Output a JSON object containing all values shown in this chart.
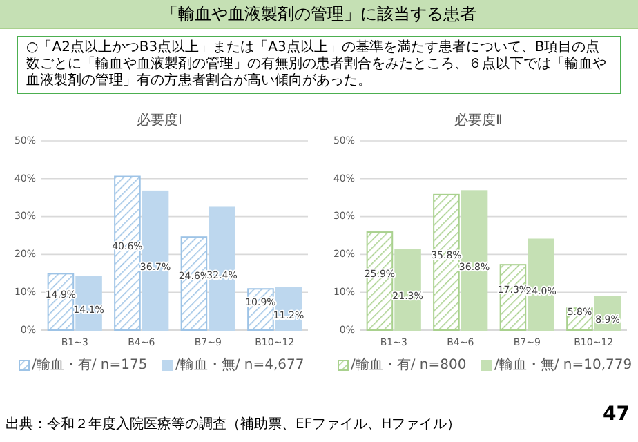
{
  "chart_data": [
    {
      "type": "bar",
      "title": "必要度Ⅰ",
      "categories": [
        "B1~3",
        "B4~6",
        "B7~9",
        "B10~12"
      ],
      "series": [
        {
          "name": "/輸血・有/ n=175",
          "color": "#9dc3e6",
          "values": [
            14.9,
            40.6,
            24.6,
            10.9
          ],
          "value_labels": [
            "14.9%",
            "40.6%",
            "24.6%",
            "10.9%"
          ]
        },
        {
          "name": "/輸血・無/ n=4,677",
          "color": "#bdd7ee",
          "values": [
            14.1,
            36.7,
            32.4,
            11.2
          ],
          "value_labels": [
            "14.1%",
            "36.7%",
            "32.4%",
            "11.2%"
          ]
        }
      ],
      "ylim": [
        0,
        50
      ],
      "yticks": [
        {
          "value": 0,
          "label": "0%"
        },
        {
          "value": 10,
          "label": "10%"
        },
        {
          "value": 20,
          "label": "20%"
        },
        {
          "value": 30,
          "label": "30%"
        },
        {
          "value": 40,
          "label": "40%"
        },
        {
          "value": 50,
          "label": "50%"
        }
      ],
      "grid": "y",
      "legend": "bottom",
      "annotations": [
        "「輸血や血液製剤の管理」に該当する患者",
        "○「A2点以上かつB3点以上」または「A3点以上」の基準を満たす患者について、B項目の点数ごとに「輸血や血液製剤の管理」の有無別の患者割合をみたところ、６点以下では「輸血や血液製剤の管理」有の方患者割合が高い傾向があった。",
        "出典：令和２年度入院医療等の調査（補助票、EFファイル、Hファイル）",
        "47"
      ]
    },
    {
      "type": "bar",
      "title": "必要度Ⅱ",
      "categories": [
        "B1~3",
        "B4~6",
        "B7~9",
        "B10~12"
      ],
      "series": [
        {
          "name": "/輸血・有/ n=800",
          "color": "#a9d18e",
          "values": [
            25.9,
            35.8,
            17.3,
            5.8
          ],
          "value_labels": [
            "25.9%",
            "35.8%",
            "17.3%",
            "5.8%"
          ]
        },
        {
          "name": "/輸血・無/ n=10,779",
          "color": "#c5e0b4",
          "values": [
            21.3,
            36.8,
            24.0,
            8.9
          ],
          "value_labels": [
            "21.3%",
            "36.8%",
            "24.0%",
            "8.9%"
          ]
        }
      ],
      "ylim": [
        0,
        50
      ],
      "yticks": [
        {
          "value": 0,
          "label": "0%"
        },
        {
          "value": 10,
          "label": "10%"
        },
        {
          "value": 20,
          "label": "20%"
        },
        {
          "value": 30,
          "label": "30%"
        },
        {
          "value": 40,
          "label": "40%"
        },
        {
          "value": 50,
          "label": "50%"
        }
      ],
      "grid": "y",
      "legend": "bottom"
    }
  ]
}
